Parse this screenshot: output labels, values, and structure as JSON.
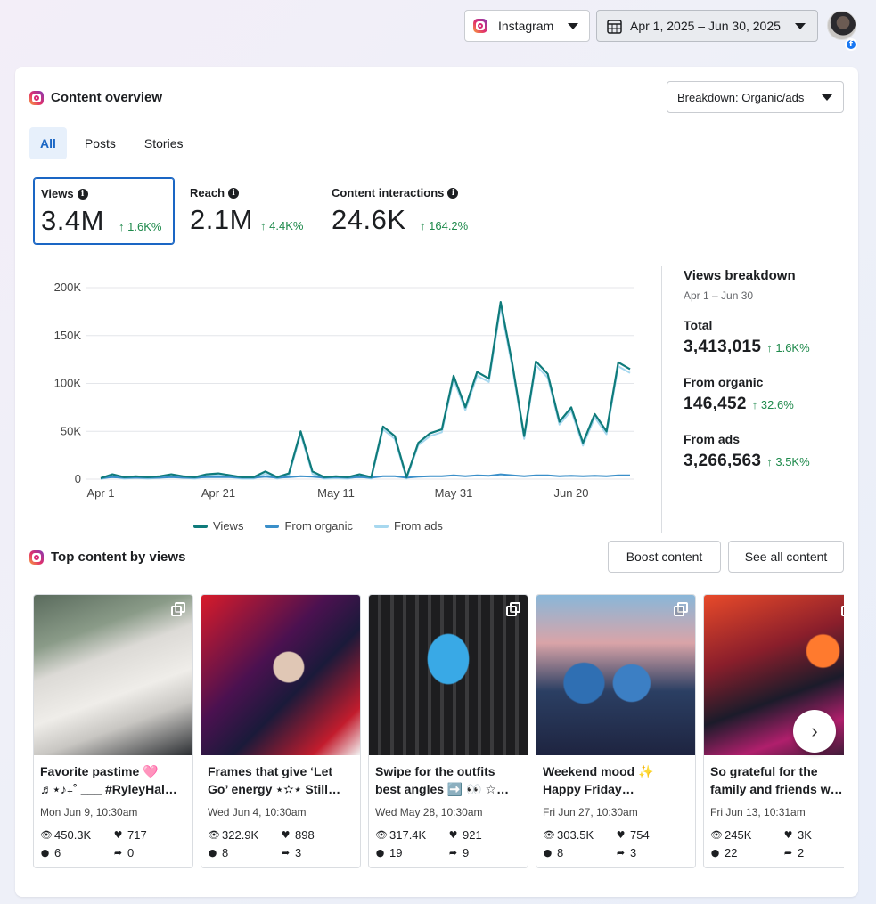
{
  "topbar": {
    "platform_label": "Instagram",
    "date_range": "Apr 1, 2025 – Jun 30, 2025",
    "avatar_icon": "user-avatar-icon",
    "badge_icon": "facebook-icon"
  },
  "overview": {
    "title": "Content overview",
    "breakdown_label": "Breakdown: Organic/ads",
    "tabs": [
      {
        "label": "All",
        "active": true
      },
      {
        "label": "Posts",
        "active": false
      },
      {
        "label": "Stories",
        "active": false
      }
    ],
    "metrics": [
      {
        "label": "Views",
        "value": "3.4M",
        "delta": "1.6K%",
        "selected": true
      },
      {
        "label": "Reach",
        "value": "2.1M",
        "delta": "4.4K%",
        "selected": false
      },
      {
        "label": "Content interactions",
        "value": "24.6K",
        "delta": "164.2%",
        "selected": false
      }
    ]
  },
  "chart_data": {
    "type": "line",
    "title": "",
    "xlabel": "",
    "ylabel": "",
    "ylim": [
      0,
      200000
    ],
    "yticks": [
      "0",
      "50K",
      "100K",
      "150K",
      "200K"
    ],
    "xticks": [
      "Apr 1",
      "Apr 21",
      "May 11",
      "May 31",
      "Jun 20"
    ],
    "grid": true,
    "legend_position": "bottom",
    "x": [
      "Apr 1",
      "Apr 3",
      "Apr 5",
      "Apr 7",
      "Apr 9",
      "Apr 11",
      "Apr 13",
      "Apr 15",
      "Apr 17",
      "Apr 19",
      "Apr 21",
      "Apr 23",
      "Apr 25",
      "Apr 27",
      "Apr 29",
      "May 1",
      "May 3",
      "May 5",
      "May 7",
      "May 9",
      "May 11",
      "May 13",
      "May 15",
      "May 17",
      "May 19",
      "May 21",
      "May 23",
      "May 25",
      "May 27",
      "May 29",
      "May 31",
      "Jun 2",
      "Jun 4",
      "Jun 6",
      "Jun 8",
      "Jun 10",
      "Jun 12",
      "Jun 14",
      "Jun 16",
      "Jun 18",
      "Jun 20",
      "Jun 22",
      "Jun 24",
      "Jun 26",
      "Jun 28",
      "Jun 30"
    ],
    "series": [
      {
        "name": "Views",
        "color": "#0f7b7b",
        "values": [
          1000,
          5000,
          2000,
          3000,
          2000,
          3000,
          5000,
          3000,
          2000,
          5000,
          6000,
          4000,
          2000,
          2000,
          8000,
          2000,
          6000,
          50000,
          8000,
          2000,
          3000,
          2000,
          5000,
          2000,
          55000,
          45000,
          2000,
          38000,
          48000,
          52000,
          108000,
          75000,
          112000,
          105000,
          185000,
          120000,
          45000,
          123000,
          110000,
          60000,
          75000,
          38000,
          68000,
          50000,
          122000,
          115000
        ]
      },
      {
        "name": "From organic",
        "color": "#3a8fc9",
        "values": [
          1000,
          2000,
          1500,
          1500,
          1500,
          1500,
          2000,
          1500,
          1500,
          2000,
          2000,
          2000,
          1500,
          1500,
          2500,
          1500,
          2000,
          3000,
          2500,
          1500,
          2000,
          1500,
          2000,
          1500,
          3000,
          3000,
          1500,
          2500,
          3000,
          3000,
          4000,
          3000,
          4000,
          3500,
          5000,
          4000,
          3000,
          4000,
          4000,
          3000,
          3500,
          3000,
          3500,
          3000,
          4000,
          4000
        ]
      },
      {
        "name": "From ads",
        "color": "#a7d8ef",
        "values": [
          0,
          3000,
          500,
          1500,
          500,
          1500,
          3000,
          1500,
          500,
          3000,
          4000,
          2000,
          500,
          500,
          5500,
          500,
          4000,
          47000,
          5500,
          500,
          1000,
          500,
          3000,
          500,
          52000,
          42000,
          500,
          35500,
          45000,
          49000,
          104000,
          72000,
          108000,
          101500,
          180000,
          116000,
          42000,
          119000,
          106000,
          57000,
          71500,
          35000,
          64500,
          47000,
          118000,
          111000
        ]
      }
    ]
  },
  "breakdown": {
    "title": "Views breakdown",
    "range": "Apr 1 – Jun 30",
    "rows": [
      {
        "label": "Total",
        "value": "3,413,015",
        "delta": "1.6K%"
      },
      {
        "label": "From organic",
        "value": "146,452",
        "delta": "32.6%"
      },
      {
        "label": "From ads",
        "value": "3,266,563",
        "delta": "3.5K%"
      }
    ]
  },
  "top_content": {
    "title": "Top content by views",
    "boost_label": "Boost content",
    "see_all_label": "See all content",
    "next_icon": "chevron-right-icon",
    "posts": [
      {
        "line1": "Favorite pastime 🩷",
        "line2": "♬⋆♪₊˚ ___ #RyleyHal…",
        "date": "Mon Jun 9, 10:30am",
        "views": "450.3K",
        "likes": "717",
        "comments": "6",
        "shares": "0",
        "carousel": true
      },
      {
        "line1": "Frames that give ‘Let",
        "line2": "Go’ energy ⋆✫⋆ Still…",
        "date": "Wed Jun 4, 10:30am",
        "views": "322.9K",
        "likes": "898",
        "comments": "8",
        "shares": "3",
        "carousel": false
      },
      {
        "line1": "Swipe for the outfits",
        "line2": "best angles ➡️ 👀 ☆…",
        "date": "Wed May 28, 10:30am",
        "views": "317.4K",
        "likes": "921",
        "comments": "19",
        "shares": "9",
        "carousel": true
      },
      {
        "line1": "Weekend mood ✨",
        "line2": "Happy Friday…",
        "date": "Fri Jun 27, 10:30am",
        "views": "303.5K",
        "likes": "754",
        "comments": "8",
        "shares": "3",
        "carousel": true
      },
      {
        "line1": "So grateful for the",
        "line2": "family and friends w…",
        "date": "Fri Jun 13, 10:31am",
        "views": "245K",
        "likes": "3K",
        "comments": "22",
        "shares": "2",
        "carousel": true
      }
    ]
  }
}
